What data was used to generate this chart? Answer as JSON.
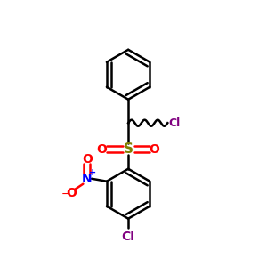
{
  "background": "#ffffff",
  "bond_color": "#000000",
  "S_color": "#808000",
  "N_color": "#0000ff",
  "O_color": "#ff0000",
  "Cl_color": "#800080",
  "fig_size": [
    3.0,
    3.0
  ],
  "dpi": 100,
  "xlim": [
    0,
    10
  ],
  "ylim": [
    0,
    10
  ]
}
